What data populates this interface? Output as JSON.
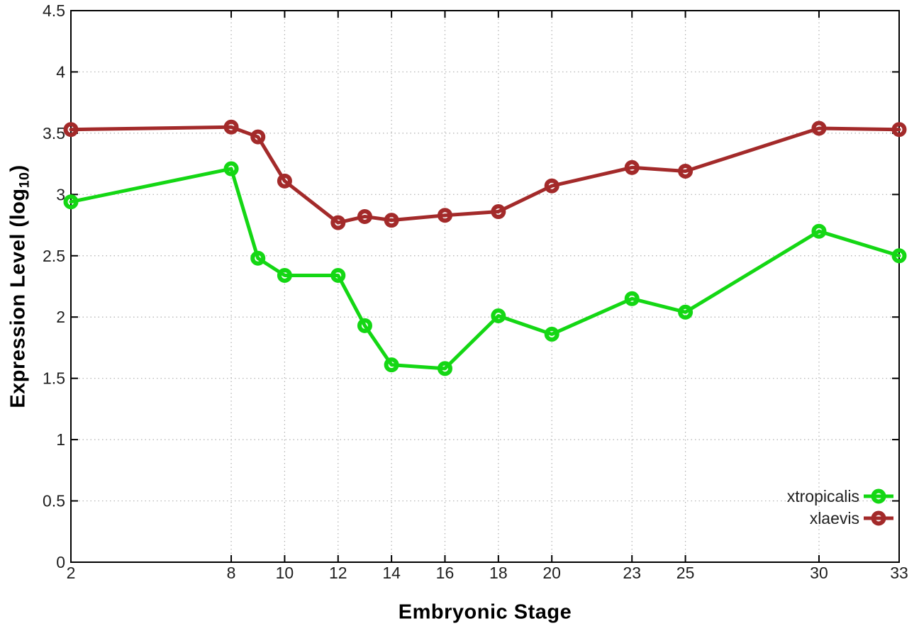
{
  "figure": {
    "x_axis_title": "Embryonic Stage",
    "y_axis_title": {
      "prefix": "Expression Level (log",
      "sub": "10",
      "suffix": ")"
    }
  },
  "chart_data": {
    "type": "line",
    "title": "",
    "xlabel": "Embryonic Stage",
    "ylabel": "Expression Level (log10)",
    "x": [
      2,
      8,
      9,
      10,
      12,
      13,
      14,
      16,
      18,
      20,
      23,
      25,
      30,
      33
    ],
    "series": [
      {
        "name": "xtropicalis",
        "color": "#14d714",
        "marker": "open-circle",
        "values": [
          2.94,
          3.21,
          2.48,
          2.34,
          2.34,
          1.93,
          1.61,
          1.58,
          2.01,
          1.86,
          2.15,
          2.04,
          2.7,
          2.5
        ]
      },
      {
        "name": "xlaevis",
        "color": "#a32a2a",
        "marker": "open-circle",
        "values": [
          3.53,
          3.55,
          3.47,
          3.11,
          2.77,
          2.82,
          2.79,
          2.83,
          2.86,
          3.07,
          3.22,
          3.19,
          3.54,
          3.53
        ]
      }
    ],
    "xlim": [
      2,
      33
    ],
    "ylim": [
      0,
      4.5
    ],
    "x_ticks": [
      2,
      8,
      10,
      12,
      14,
      16,
      18,
      20,
      23,
      25,
      30,
      33
    ],
    "y_ticks": [
      0,
      0.5,
      1,
      1.5,
      2,
      2.5,
      3,
      3.5,
      4,
      4.5
    ],
    "grid": true,
    "grid_style": "dotted",
    "legend_position": "bottom-right",
    "colors": {
      "axis": "#000000",
      "grid": "#b0b0b0",
      "tick_text": "#1f1f1f"
    }
  }
}
